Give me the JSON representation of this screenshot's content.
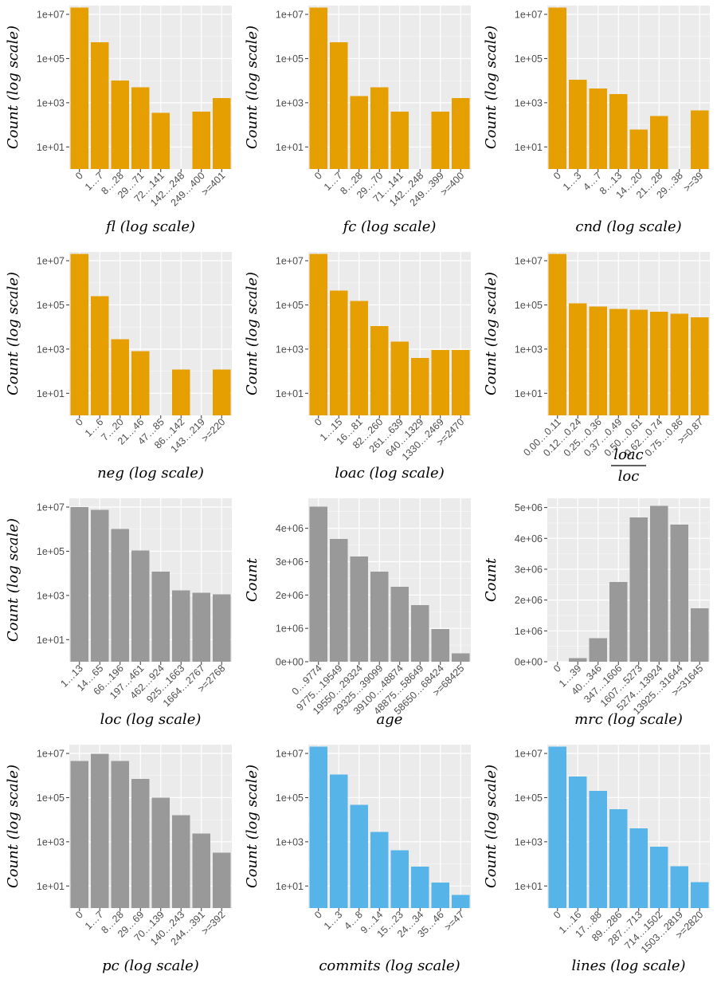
{
  "figure": {
    "title": ""
  },
  "colors": {
    "orange": "#E69F00",
    "gray": "#999999",
    "blue": "#56B4E9",
    "panel_bg": "#EBEBEB",
    "grid_major": "#FFFFFF"
  },
  "chart_data": [
    {
      "type": "bar",
      "scale": "log",
      "color": "orange",
      "categories": [
        "0",
        "1…7",
        "8…28",
        "29…71",
        "72…141",
        "142…248",
        "249…400",
        ">=401"
      ],
      "values": [
        20000000,
        550000,
        10000,
        5000,
        350,
        null,
        400,
        1600
      ],
      "xlabel": "fl (log scale)",
      "ylabel": "Count (log scale)",
      "yticks": [
        10,
        1000,
        100000,
        10000000
      ],
      "ytick_labels": [
        "1e+01",
        "1e+03",
        "1e+05",
        "1e+07"
      ],
      "ylim": [
        1,
        25000000
      ]
    },
    {
      "type": "bar",
      "scale": "log",
      "color": "orange",
      "categories": [
        "0",
        "1…7",
        "8…28",
        "29…70",
        "71…141",
        "142…248",
        "249…399",
        ">=400"
      ],
      "values": [
        20000000,
        550000,
        2000,
        5000,
        400,
        null,
        400,
        1600
      ],
      "xlabel": "fc (log scale)",
      "ylabel": "Count (log scale)",
      "yticks": [
        10,
        1000,
        100000,
        10000000
      ],
      "ytick_labels": [
        "1e+01",
        "1e+03",
        "1e+05",
        "1e+07"
      ],
      "ylim": [
        1,
        25000000
      ]
    },
    {
      "type": "bar",
      "scale": "log",
      "color": "orange",
      "categories": [
        "0",
        "1…3",
        "4…7",
        "8…13",
        "14…20",
        "21…28",
        "29…38",
        ">=39"
      ],
      "values": [
        20000000,
        11000,
        4500,
        2500,
        60,
        250,
        null,
        450
      ],
      "xlabel": "cnd (log scale)",
      "ylabel": "Count (log scale)",
      "yticks": [
        10,
        1000,
        100000,
        10000000
      ],
      "ytick_labels": [
        "1e+01",
        "1e+03",
        "1e+05",
        "1e+07"
      ],
      "ylim": [
        1,
        25000000
      ]
    },
    {
      "type": "bar",
      "scale": "log",
      "color": "orange",
      "categories": [
        "0",
        "1…6",
        "7…20",
        "21…46",
        "47…85",
        "86…142",
        "143…219",
        ">=220"
      ],
      "values": [
        20000000,
        250000,
        2800,
        800,
        null,
        120,
        null,
        120
      ],
      "xlabel": "neg (log scale)",
      "ylabel": "Count (log scale)",
      "yticks": [
        10,
        1000,
        100000,
        10000000
      ],
      "ytick_labels": [
        "1e+01",
        "1e+03",
        "1e+05",
        "1e+07"
      ],
      "ylim": [
        1,
        25000000
      ]
    },
    {
      "type": "bar",
      "scale": "log",
      "color": "orange",
      "categories": [
        "0",
        "1…15",
        "16…81",
        "82…260",
        "261…639",
        "640…1329",
        "1330…2469",
        ">=2470"
      ],
      "values": [
        20000000,
        450000,
        150000,
        11000,
        2200,
        400,
        900,
        900
      ],
      "xlabel": "loac (log scale)",
      "ylabel": "Count (log scale)",
      "yticks": [
        10,
        1000,
        100000,
        10000000
      ],
      "ytick_labels": [
        "1e+01",
        "1e+03",
        "1e+05",
        "1e+07"
      ],
      "ylim": [
        1,
        25000000
      ]
    },
    {
      "type": "bar",
      "scale": "log",
      "color": "orange",
      "categories": [
        "0.00…0.11",
        "0.12…0.24",
        "0.25…0.36",
        "0.37…0.49",
        "0.50…0.61",
        "0.62…0.74",
        "0.75…0.86",
        ">=0.87"
      ],
      "values": [
        20000000,
        120000,
        85000,
        65000,
        60000,
        50000,
        40000,
        28000
      ],
      "xlabel_num": "loac",
      "xlabel_den": "loc",
      "ylabel": "Count (log scale)",
      "yticks": [
        10,
        1000,
        100000,
        10000000
      ],
      "ytick_labels": [
        "1e+01",
        "1e+03",
        "1e+05",
        "1e+07"
      ],
      "ylim": [
        1,
        25000000
      ]
    },
    {
      "type": "bar",
      "scale": "log",
      "color": "gray",
      "categories": [
        "1…13",
        "14…65",
        "66…196",
        "197…461",
        "462…924",
        "925…1663",
        "1664…2767",
        ">=2768"
      ],
      "values": [
        10000000,
        7500000,
        1000000,
        110000,
        12000,
        1700,
        1300,
        1100
      ],
      "xlabel": "loc (log scale)",
      "ylabel": "Count (log scale)",
      "yticks": [
        10,
        1000,
        100000,
        10000000
      ],
      "ytick_labels": [
        "1e+01",
        "1e+03",
        "1e+05",
        "1e+07"
      ],
      "ylim": [
        1,
        25000000
      ]
    },
    {
      "type": "bar",
      "scale": "linear",
      "color": "gray",
      "categories": [
        "0…9774",
        "9775…19549",
        "19550…29324",
        "29325…39099",
        "39100…48874",
        "48875…58649",
        "58650…68424",
        ">=68425"
      ],
      "values": [
        4650000,
        3680000,
        3150000,
        2700000,
        2250000,
        1700000,
        980000,
        250000
      ],
      "xlabel": "age",
      "ylabel": "Count",
      "yticks": [
        0,
        1000000,
        2000000,
        3000000,
        4000000
      ],
      "ytick_labels": [
        "0e+00",
        "1e+06",
        "2e+06",
        "3e+06",
        "4e+06"
      ],
      "ylim": [
        0,
        4900000
      ]
    },
    {
      "type": "bar",
      "scale": "linear",
      "color": "gray",
      "categories": [
        "0",
        "1…39",
        "40…346",
        "347…1606",
        "1607…5273",
        "5274…13924",
        "13925…31644",
        ">=31645"
      ],
      "values": [
        0,
        120000,
        760000,
        2580000,
        4680000,
        5050000,
        4450000,
        1730000
      ],
      "xlabel": "mrc (log scale)",
      "ylabel": "Count",
      "yticks": [
        0,
        1000000,
        2000000,
        3000000,
        4000000,
        5000000
      ],
      "ytick_labels": [
        "0e+00",
        "1e+06",
        "2e+06",
        "3e+06",
        "4e+06",
        "5e+06"
      ],
      "ylim": [
        0,
        5300000
      ]
    },
    {
      "type": "bar",
      "scale": "log",
      "color": "gray",
      "categories": [
        "0",
        "1…7",
        "8…28",
        "29…69",
        "70…139",
        "140…243",
        "244…391",
        ">=392"
      ],
      "values": [
        4500000,
        9500000,
        4500000,
        700000,
        100000,
        16000,
        2400,
        320
      ],
      "xlabel": "pc (log scale)",
      "ylabel": "Count (log scale)",
      "yticks": [
        10,
        1000,
        100000,
        10000000
      ],
      "ytick_labels": [
        "1e+01",
        "1e+03",
        "1e+05",
        "1e+07"
      ],
      "ylim": [
        1,
        25000000
      ]
    },
    {
      "type": "bar",
      "scale": "log",
      "color": "blue",
      "categories": [
        "0",
        "1…3",
        "4…8",
        "9…14",
        "15…23",
        "24…34",
        "35…46",
        ">=47"
      ],
      "values": [
        20000000,
        1100000,
        48000,
        2800,
        420,
        75,
        14,
        4
      ],
      "xlabel": "commits (log scale)",
      "ylabel": "Count (log scale)",
      "yticks": [
        10,
        1000,
        100000,
        10000000
      ],
      "ytick_labels": [
        "1e+01",
        "1e+03",
        "1e+05",
        "1e+07"
      ],
      "ylim": [
        1,
        25000000
      ]
    },
    {
      "type": "bar",
      "scale": "log",
      "color": "blue",
      "categories": [
        "0",
        "1…16",
        "17…88",
        "89…286",
        "287…713",
        "714…1502",
        "1503…2819",
        ">=2820"
      ],
      "values": [
        20000000,
        900000,
        200000,
        30000,
        4000,
        600,
        80,
        15
      ],
      "xlabel": "lines (log scale)",
      "ylabel": "Count (log scale)",
      "yticks": [
        10,
        1000,
        100000,
        10000000
      ],
      "ytick_labels": [
        "1e+01",
        "1e+03",
        "1e+05",
        "1e+07"
      ],
      "ylim": [
        1,
        25000000
      ]
    }
  ]
}
